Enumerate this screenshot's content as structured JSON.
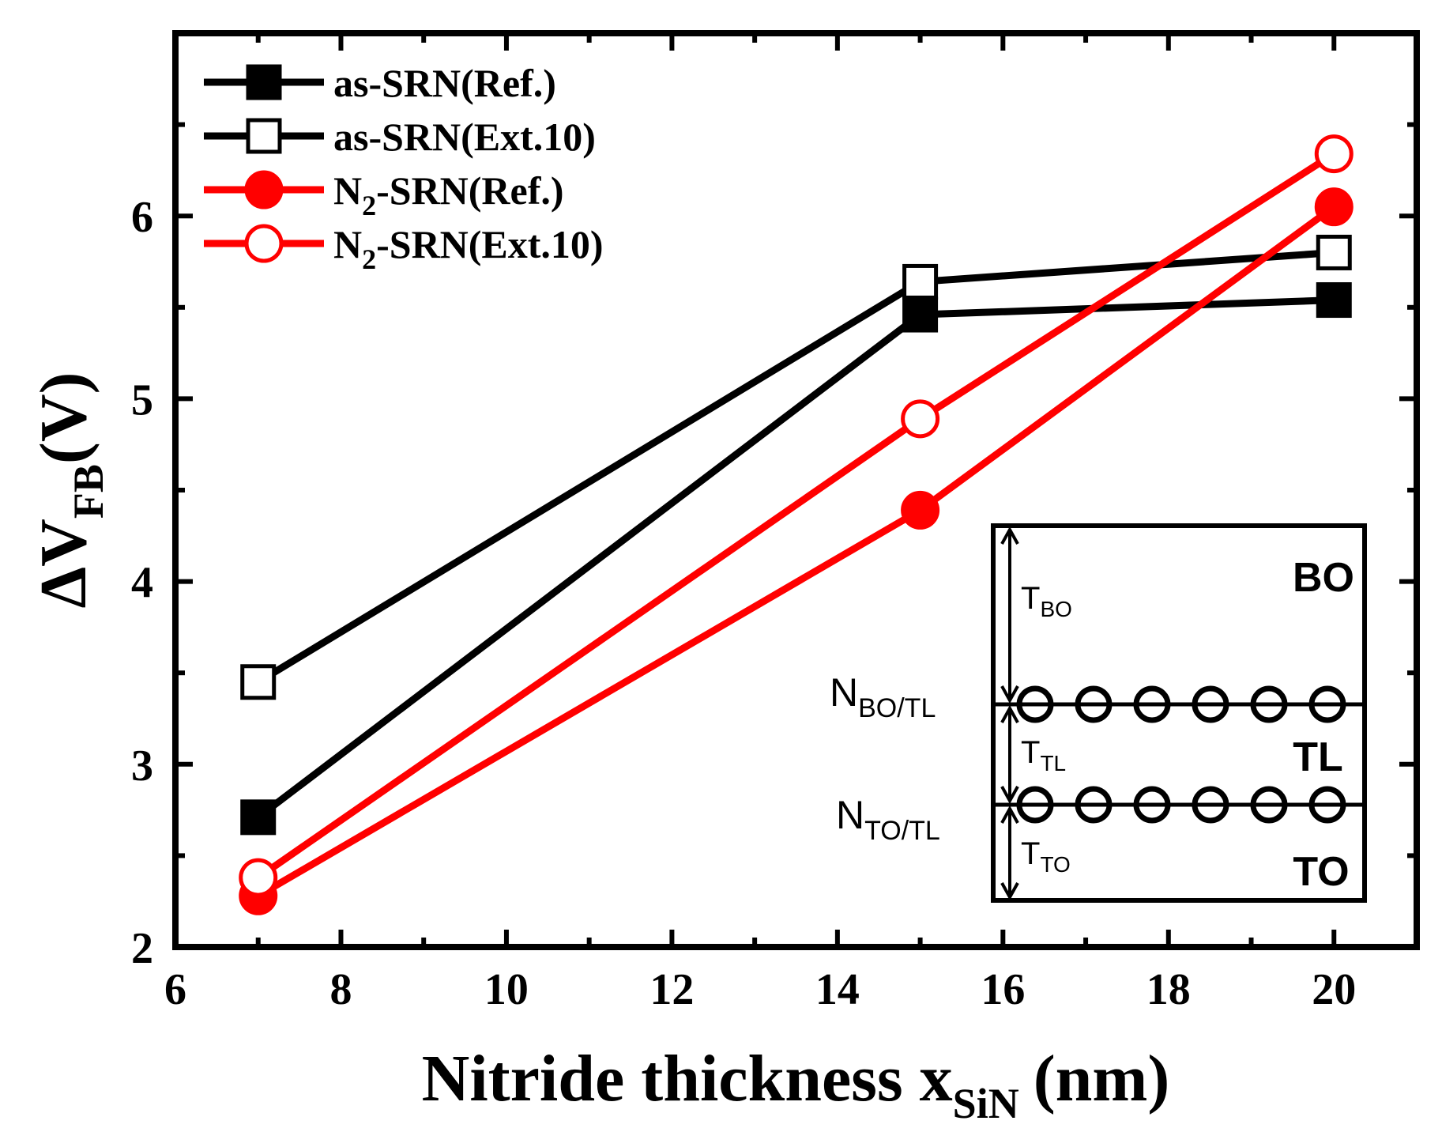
{
  "chart_data": {
    "type": "line",
    "x_range": [
      6,
      21
    ],
    "y_range": [
      2,
      7
    ],
    "x_ticks": [
      6,
      8,
      10,
      12,
      14,
      16,
      18,
      20
    ],
    "y_ticks": [
      2,
      3,
      4,
      5,
      6
    ],
    "x_label": {
      "main": "Nitride thickness x",
      "sub": "SiN",
      "unit": "(nm)"
    },
    "y_label": {
      "delta": "Δ",
      "main": "V",
      "sub": "FB",
      "unit": "(V)"
    },
    "legend_position": "top-left",
    "series": [
      {
        "name": "as-SRN(Ref.)",
        "name_parts": [
          "as-SRN(Ref.)",
          "",
          ""
        ],
        "color": "#000000",
        "marker": "square",
        "filled": true,
        "x": [
          7,
          15,
          20
        ],
        "y": [
          2.71,
          5.46,
          5.54
        ]
      },
      {
        "name": "as-SRN(Ext.10)",
        "name_parts": [
          "as-SRN(Ext.10)",
          "",
          ""
        ],
        "color": "#000000",
        "marker": "square",
        "filled": false,
        "x": [
          7,
          15,
          20
        ],
        "y": [
          3.45,
          5.64,
          5.8
        ]
      },
      {
        "name": "N2-SRN(Ref.)",
        "name_parts": [
          "N",
          "2",
          "-SRN(Ref.)"
        ],
        "color": "#ff0000",
        "marker": "circle",
        "filled": true,
        "x": [
          7,
          15,
          20
        ],
        "y": [
          2.28,
          4.39,
          6.05
        ]
      },
      {
        "name": "N2-SRN(Ext.10)",
        "name_parts": [
          "N",
          "2",
          "-SRN(Ext.10)"
        ],
        "color": "#ff0000",
        "marker": "circle",
        "filled": false,
        "x": [
          7,
          15,
          20
        ],
        "y": [
          2.38,
          4.89,
          6.34
        ]
      }
    ],
    "inset": {
      "labels": {
        "bo": "BO",
        "tl": "TL",
        "to": "TO",
        "t_bo": "T",
        "t_bo_sub": "BO",
        "t_tl": "T",
        "t_tl_sub": "TL",
        "t_to": "T",
        "t_to_sub": "TO",
        "n_bo_tl": "N",
        "n_bo_tl_sub": "BO/TL",
        "n_to_tl": "N",
        "n_to_tl_sub": "TO/TL"
      }
    }
  }
}
